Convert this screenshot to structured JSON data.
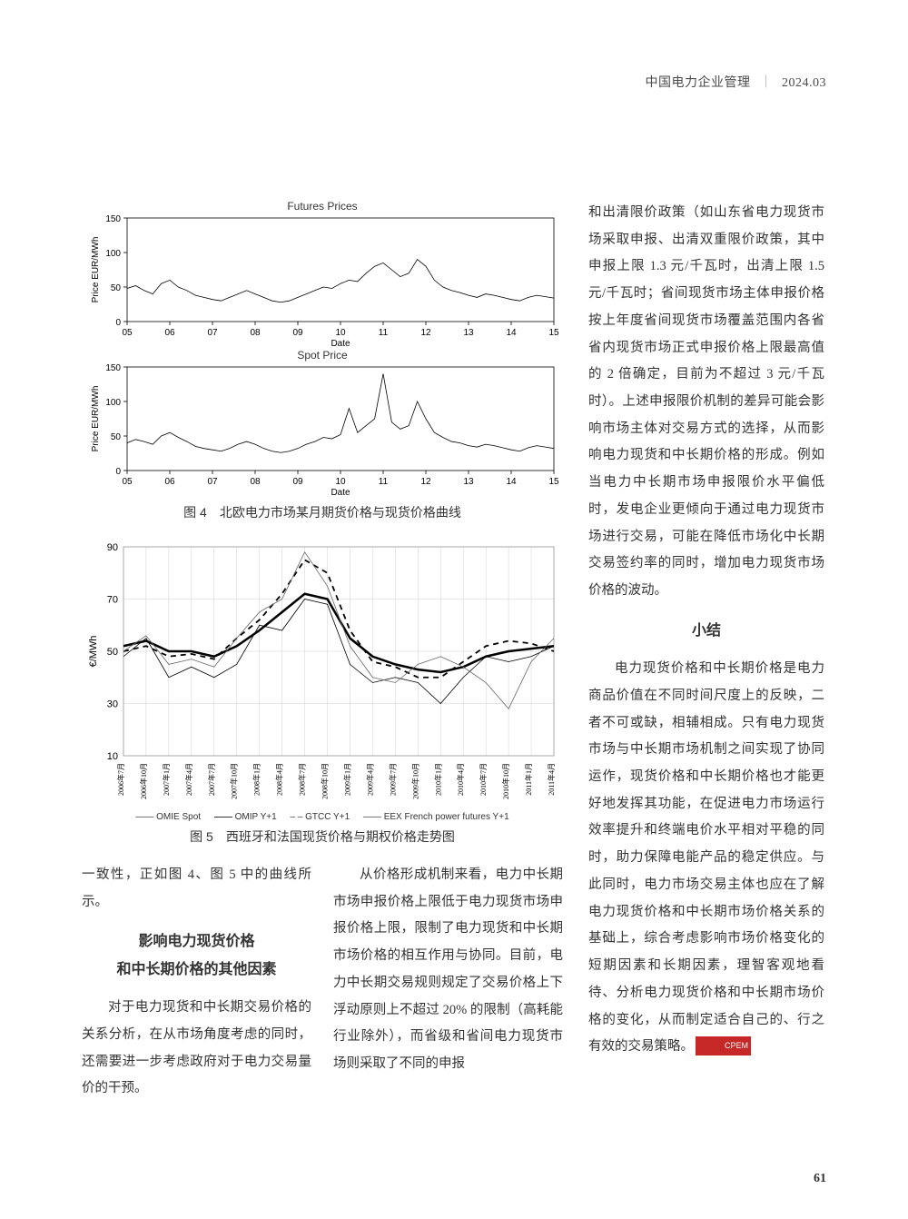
{
  "header": {
    "journal": "中国电力企业管理",
    "issue": "2024.03"
  },
  "fig4": {
    "caption": "图 4　北欧电力市场某月期货价格与现货价格曲线",
    "panels": [
      {
        "title": "Futures Prices",
        "ylabel": "Price EUR/MWh",
        "xlabel": "Date",
        "xlim": [
          5,
          15
        ],
        "xtick_step": 1,
        "ylim": [
          0,
          150
        ],
        "ytick_step": 50,
        "line_color": "#000000",
        "line_width": 0.8,
        "grid_color": "#e0e0e0",
        "background": "#ffffff",
        "series": [
          [
            5.0,
            48
          ],
          [
            5.2,
            52
          ],
          [
            5.4,
            45
          ],
          [
            5.6,
            40
          ],
          [
            5.8,
            55
          ],
          [
            6.0,
            60
          ],
          [
            6.2,
            50
          ],
          [
            6.4,
            45
          ],
          [
            6.6,
            38
          ],
          [
            6.8,
            35
          ],
          [
            7.0,
            32
          ],
          [
            7.2,
            30
          ],
          [
            7.4,
            35
          ],
          [
            7.6,
            40
          ],
          [
            7.8,
            45
          ],
          [
            8.0,
            40
          ],
          [
            8.2,
            35
          ],
          [
            8.4,
            30
          ],
          [
            8.6,
            28
          ],
          [
            8.8,
            30
          ],
          [
            9.0,
            35
          ],
          [
            9.2,
            40
          ],
          [
            9.4,
            45
          ],
          [
            9.6,
            50
          ],
          [
            9.8,
            48
          ],
          [
            10.0,
            55
          ],
          [
            10.2,
            60
          ],
          [
            10.4,
            58
          ],
          [
            10.6,
            70
          ],
          [
            10.8,
            80
          ],
          [
            11.0,
            85
          ],
          [
            11.2,
            75
          ],
          [
            11.4,
            65
          ],
          [
            11.6,
            70
          ],
          [
            11.8,
            90
          ],
          [
            12.0,
            80
          ],
          [
            12.2,
            60
          ],
          [
            12.4,
            50
          ],
          [
            12.6,
            45
          ],
          [
            12.8,
            42
          ],
          [
            13.0,
            38
          ],
          [
            13.2,
            35
          ],
          [
            13.4,
            40
          ],
          [
            13.6,
            38
          ],
          [
            13.8,
            35
          ],
          [
            14.0,
            32
          ],
          [
            14.2,
            30
          ],
          [
            14.4,
            35
          ],
          [
            14.6,
            38
          ],
          [
            14.8,
            36
          ],
          [
            15.0,
            34
          ]
        ]
      },
      {
        "title": "Spot Price",
        "ylabel": "Price EUR/MWh",
        "xlabel": "Date",
        "xlim": [
          5,
          15
        ],
        "xtick_step": 1,
        "ylim": [
          0,
          150
        ],
        "ytick_step": 50,
        "line_color": "#000000",
        "line_width": 0.8,
        "grid_color": "#e0e0e0",
        "background": "#ffffff",
        "series": [
          [
            5.0,
            40
          ],
          [
            5.2,
            45
          ],
          [
            5.4,
            42
          ],
          [
            5.6,
            38
          ],
          [
            5.8,
            50
          ],
          [
            6.0,
            55
          ],
          [
            6.2,
            48
          ],
          [
            6.4,
            42
          ],
          [
            6.6,
            35
          ],
          [
            6.8,
            32
          ],
          [
            7.0,
            30
          ],
          [
            7.2,
            28
          ],
          [
            7.4,
            32
          ],
          [
            7.6,
            38
          ],
          [
            7.8,
            42
          ],
          [
            8.0,
            38
          ],
          [
            8.2,
            32
          ],
          [
            8.4,
            28
          ],
          [
            8.6,
            26
          ],
          [
            8.8,
            28
          ],
          [
            9.0,
            32
          ],
          [
            9.2,
            38
          ],
          [
            9.4,
            42
          ],
          [
            9.6,
            48
          ],
          [
            9.8,
            46
          ],
          [
            10.0,
            52
          ],
          [
            10.2,
            90
          ],
          [
            10.4,
            55
          ],
          [
            10.6,
            65
          ],
          [
            10.8,
            75
          ],
          [
            11.0,
            140
          ],
          [
            11.2,
            70
          ],
          [
            11.4,
            60
          ],
          [
            11.6,
            65
          ],
          [
            11.8,
            100
          ],
          [
            12.0,
            75
          ],
          [
            12.2,
            55
          ],
          [
            12.4,
            48
          ],
          [
            12.6,
            42
          ],
          [
            12.8,
            40
          ],
          [
            13.0,
            36
          ],
          [
            13.2,
            34
          ],
          [
            13.4,
            38
          ],
          [
            13.6,
            36
          ],
          [
            13.8,
            33
          ],
          [
            14.0,
            30
          ],
          [
            14.2,
            28
          ],
          [
            14.4,
            33
          ],
          [
            14.6,
            36
          ],
          [
            14.8,
            34
          ],
          [
            15.0,
            32
          ]
        ]
      }
    ]
  },
  "fig5": {
    "caption": "图 5　西班牙和法国现货价格与期权价格走势图",
    "ylabel": "€/MWh",
    "ylim": [
      10,
      90
    ],
    "ytick_step": 20,
    "background": "#ffffff",
    "grid_color": "#d0d0d0",
    "xlabels": [
      "2006年7月",
      "2006年10月",
      "2007年1月",
      "2007年4月",
      "2007年7月",
      "2007年10月",
      "2008年1月",
      "2008年4月",
      "2008年7月",
      "2008年10月",
      "2009年1月",
      "2009年4月",
      "2009年7月",
      "2009年10月",
      "2010年1月",
      "2010年4月",
      "2010年7月",
      "2010年10月",
      "2011年1月",
      "2011年4月"
    ],
    "legend": [
      {
        "key": "OMIE Spot",
        "color": "#000000",
        "width": 0.8,
        "dash": "none"
      },
      {
        "key": "OMIP Y+1",
        "color": "#000000",
        "width": 2.5,
        "dash": "none"
      },
      {
        "key": "GTCC Y+1",
        "color": "#000000",
        "width": 1.8,
        "dash": "5,4"
      },
      {
        "key": "EEX French power futures Y+1",
        "color": "#666666",
        "width": 0.8,
        "dash": "none"
      }
    ],
    "series": {
      "OMIE Spot": [
        48,
        55,
        40,
        44,
        40,
        45,
        60,
        58,
        70,
        68,
        45,
        38,
        40,
        38,
        30,
        40,
        48,
        46,
        48,
        52
      ],
      "OMIP Y+1": [
        52,
        54,
        50,
        50,
        48,
        52,
        58,
        65,
        72,
        70,
        55,
        48,
        45,
        43,
        42,
        44,
        48,
        50,
        51,
        52
      ],
      "GTCC Y+1": [
        50,
        52,
        48,
        49,
        47,
        55,
        62,
        72,
        85,
        80,
        58,
        46,
        44,
        40,
        40,
        46,
        52,
        54,
        53,
        50
      ],
      "EEX French": [
        50,
        56,
        45,
        47,
        44,
        55,
        65,
        70,
        88,
        75,
        52,
        40,
        38,
        45,
        48,
        44,
        38,
        28,
        46,
        55
      ]
    }
  },
  "text": {
    "left_intro": "一致性，正如图 4、图 5 中的曲线所示。",
    "section_heading_1a": "影响电力现货价格",
    "section_heading_1b": "和中长期价格的其他因素",
    "left_p1": "对于电力现货和中长期交易价格的关系分析，在从市场角度考虑的同时，还需要进一步考虑政府对于电力交易量价的干预。",
    "mid_p1": "从价格形成机制来看，电力中长期市场申报价格上限低于电力现货市场申报价格上限，限制了电力现货和中长期市场价格的相互作用与协同。目前，电力中长期交易规则规定了交易价格上下浮动原则上不超过 20% 的限制（高耗能行业除外），而省级和省间电力现货市场则采取了不同的申报",
    "right_p1": "和出清限价政策（如山东省电力现货市场采取申报、出清双重限价政策，其中申报上限 1.3 元/千瓦时，出清上限 1.5 元/千瓦时；省间现货市场主体申报价格按上年度省间现货市场覆盖范围内各省省内现货市场正式申报价格上限最高值的 2 倍确定，目前为不超过 3 元/千瓦时）。上述申报限价机制的差异可能会影响市场主体对交易方式的选择，从而影响电力现货和中长期价格的形成。例如当电力中长期市场申报限价水平偏低时，发电企业更倾向于通过电力现货市场进行交易，可能在降低市场化中长期交易签约率的同时，增加电力现货市场价格的波动。",
    "section_heading_2": "小结",
    "right_p2": "电力现货价格和中长期价格是电力商品价值在不同时间尺度上的反映，二者不可或缺，相辅相成。只有电力现货市场与中长期市场机制之间实现了协同运作，现货价格和中长期价格也才能更好地发挥其功能，在促进电力市场运行效率提升和终端电价水平相对平稳的同时，助力保障电能产品的稳定供应。与此同时，电力市场交易主体也应在了解电力现货价格和中长期市场价格关系的基础上，综合考虑影响市场价格变化的短期因素和长期因素，理智客观地看待、分析电力现货价格和中长期市场价格的变化，从而制定适合自己的、行之有效的交易策略。",
    "badge": "CPEM"
  },
  "page_number": "61"
}
